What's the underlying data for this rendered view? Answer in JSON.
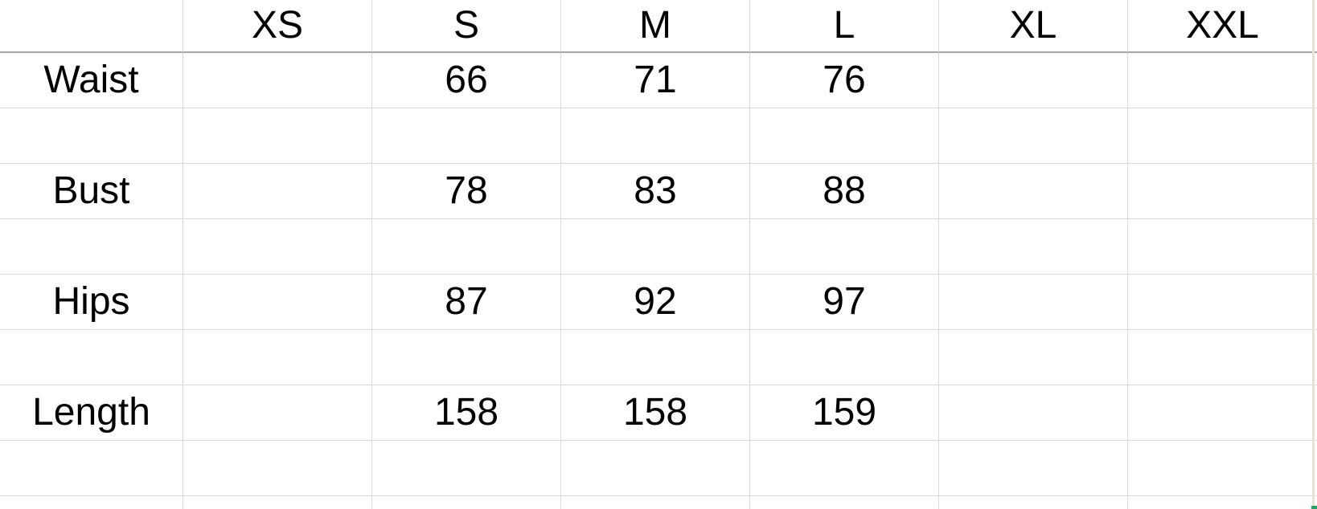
{
  "size_chart": {
    "corner_label": "",
    "column_headers": [
      "XS",
      "S",
      "M",
      "L",
      "XL",
      "XXL"
    ],
    "rows": [
      {
        "label": "Waist",
        "values": [
          "",
          "66",
          "71",
          "76",
          "",
          ""
        ]
      },
      {
        "label": "",
        "values": [
          "",
          "",
          "",
          "",
          "",
          ""
        ]
      },
      {
        "label": "Bust",
        "values": [
          "",
          "78",
          "83",
          "88",
          "",
          ""
        ]
      },
      {
        "label": "",
        "values": [
          "",
          "",
          "",
          "",
          "",
          ""
        ]
      },
      {
        "label": "Hips",
        "values": [
          "",
          "87",
          "92",
          "97",
          "",
          ""
        ]
      },
      {
        "label": "",
        "values": [
          "",
          "",
          "",
          "",
          "",
          ""
        ]
      },
      {
        "label": "Length",
        "values": [
          "",
          "158",
          "158",
          "159",
          "",
          ""
        ]
      },
      {
        "label": "",
        "values": [
          "",
          "",
          "",
          "",
          "",
          ""
        ]
      },
      {
        "label": "",
        "values": [
          "",
          "",
          "",
          "",
          "",
          ""
        ]
      }
    ]
  },
  "colors": {
    "background": "#ffffff",
    "text": "#000000",
    "gridline": "#d9d9d9",
    "header_rule": "#a6a6a6",
    "right_edge_line": "#e8e2d6",
    "fill_handle_green": "#21a366"
  }
}
